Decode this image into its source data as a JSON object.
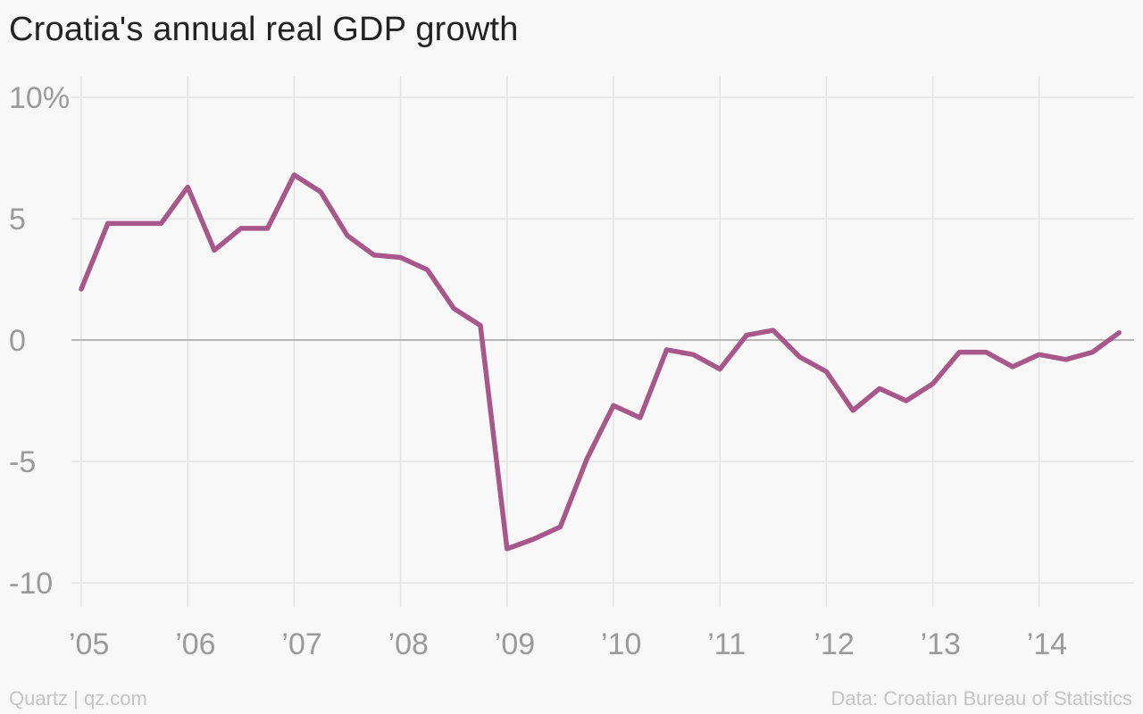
{
  "title": "Croatia's annual real GDP growth",
  "footer": {
    "left": "Quartz | qz.com",
    "right": "Data: Croatian Bureau of Statistics"
  },
  "colors": {
    "line": "#a8578a",
    "grid": "#e4e4e4",
    "zero": "#a0a0a0",
    "tick": "#9a9a9a"
  },
  "chart_data": {
    "type": "line",
    "title": "Croatia's annual real GDP growth",
    "xlabel": "",
    "ylabel": "",
    "ylim": [
      -11,
      10.5
    ],
    "xlim": [
      2005,
      2015
    ],
    "grid": true,
    "y_ticks": [
      {
        "value": 10,
        "label": "10%"
      },
      {
        "value": 5,
        "label": "5"
      },
      {
        "value": 0,
        "label": "0"
      },
      {
        "value": -5,
        "label": "-5"
      },
      {
        "value": -10,
        "label": "-10"
      }
    ],
    "x_ticks": [
      {
        "value": 2005,
        "label": "’05"
      },
      {
        "value": 2006,
        "label": "’06"
      },
      {
        "value": 2007,
        "label": "’07"
      },
      {
        "value": 2008,
        "label": "’08"
      },
      {
        "value": 2009,
        "label": "’09"
      },
      {
        "value": 2010,
        "label": "’10"
      },
      {
        "value": 2011,
        "label": "’11"
      },
      {
        "value": 2012,
        "label": "’12"
      },
      {
        "value": 2013,
        "label": "’13"
      },
      {
        "value": 2014,
        "label": "’14"
      }
    ],
    "series": [
      {
        "x": [
          2005.0,
          2005.25,
          2005.5,
          2005.75,
          2006.0,
          2006.25,
          2006.5,
          2006.75,
          2007.0,
          2007.25,
          2007.5,
          2007.75,
          2008.0,
          2008.25,
          2008.5,
          2008.75,
          2009.0,
          2009.25,
          2009.5,
          2009.75,
          2010.0,
          2010.25,
          2010.5,
          2010.75,
          2011.0,
          2011.25,
          2011.5,
          2011.75,
          2012.0,
          2012.25,
          2012.5,
          2012.75,
          2013.0,
          2013.25,
          2013.5,
          2013.75,
          2014.0,
          2014.25,
          2014.5,
          2014.75
        ],
        "values": [
          2.1,
          4.8,
          4.8,
          4.8,
          6.3,
          3.7,
          4.6,
          4.6,
          6.8,
          6.1,
          4.3,
          3.5,
          3.4,
          2.9,
          1.3,
          0.6,
          -8.6,
          -8.2,
          -7.7,
          -4.9,
          -2.7,
          -3.2,
          -0.4,
          -0.6,
          -1.2,
          0.2,
          0.4,
          -0.7,
          -1.3,
          -2.9,
          -2.0,
          -2.5,
          -1.8,
          -0.5,
          -0.5,
          -1.1,
          -0.6,
          -0.8,
          -0.5,
          0.3
        ]
      }
    ]
  }
}
